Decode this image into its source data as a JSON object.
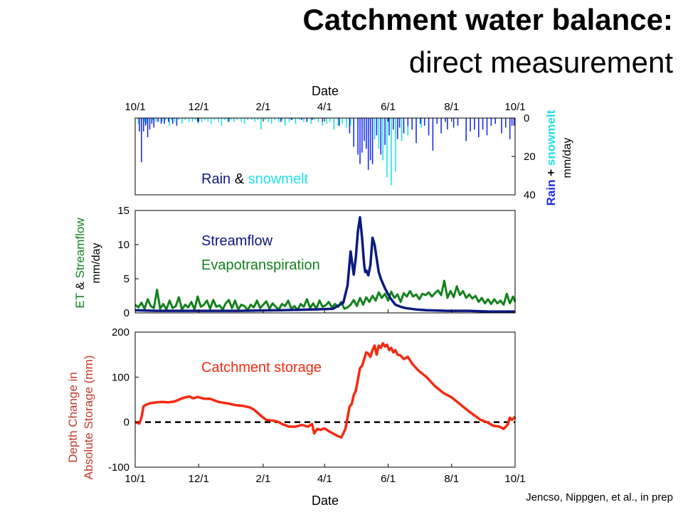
{
  "slide": {
    "title_bold": "Catchment water balance:",
    "title_regular": "direct measurement",
    "credit": "Jencso, Nippgen, et al., in prep"
  },
  "colors": {
    "rain": "#1a2ee6",
    "snowmelt": "#22e0ea",
    "streamflow": "#0c1a80",
    "et": "#12821c",
    "storage": "#f22a10",
    "storage_label": "#c0392b"
  },
  "chart_data": [
    {
      "type": "bar",
      "panel": "precipitation",
      "xlabel": "Date",
      "x_tick_labels": [
        "10/1",
        "12/1",
        "2/1",
        "4/1",
        "6/1",
        "8/1",
        "10/1"
      ],
      "x_ticks_day": [
        0,
        61,
        123,
        182,
        243,
        304,
        365
      ],
      "y_axis_side": "right",
      "inverted": true,
      "ylim": [
        0,
        40
      ],
      "y_ticks": [
        0,
        20,
        40
      ],
      "ylabel_parts": [
        "Rain",
        " + ",
        "snowmelt"
      ],
      "ylabel_units": "mm/day",
      "annotation_parts": [
        "Rain",
        " & ",
        "snowmelt"
      ],
      "snowmelt": {
        "name": "snowmelt",
        "day": [
          3,
          6,
          9,
          11,
          14,
          17,
          20,
          22,
          26,
          29,
          33,
          35,
          38,
          42,
          45,
          48,
          52,
          55,
          58,
          61,
          64,
          67,
          70,
          73,
          76,
          80,
          83,
          86,
          89,
          92,
          95,
          98,
          102,
          105,
          108,
          112,
          115,
          118,
          121,
          125,
          128,
          131,
          134,
          138,
          141,
          144,
          148,
          151,
          154,
          158,
          162,
          165,
          169,
          172,
          176,
          180,
          184,
          187,
          191,
          195,
          199,
          203,
          207,
          210,
          214,
          218,
          222,
          226,
          230,
          234,
          238,
          242,
          246,
          250,
          256,
          262,
          275
        ],
        "values": [
          3,
          1,
          2,
          3,
          1,
          1,
          2,
          1,
          2,
          1,
          4,
          1,
          2,
          1,
          3,
          1,
          2,
          2,
          1,
          3,
          2,
          1,
          2,
          3,
          1,
          2,
          4,
          1,
          2,
          1,
          2,
          1,
          2,
          3,
          1,
          1,
          2,
          1,
          6,
          1,
          2,
          3,
          1,
          2,
          1,
          4,
          2,
          1,
          3,
          1,
          2,
          2,
          3,
          1,
          2,
          4,
          3,
          2,
          6,
          4,
          3,
          5,
          4,
          3,
          2,
          5,
          9,
          7,
          11,
          16,
          22,
          31,
          35,
          28,
          12,
          9,
          5
        ]
      },
      "rain": {
        "name": "rain",
        "day": [
          4,
          6,
          8,
          10,
          12,
          14,
          16,
          18,
          22,
          25,
          28,
          32,
          36,
          40,
          60,
          90,
          140,
          150,
          160,
          165,
          170,
          180,
          196,
          206,
          210,
          214,
          216,
          218,
          220,
          222,
          224,
          226,
          228,
          232,
          236,
          240,
          244,
          248,
          252,
          254,
          258,
          262,
          266,
          270,
          274,
          278,
          282,
          286,
          290,
          294,
          298,
          300,
          306,
          310,
          318,
          322,
          326,
          330,
          334,
          338,
          342,
          346,
          352,
          356,
          360,
          362,
          364
        ],
        "values": [
          7,
          23,
          7,
          4,
          10,
          6,
          3,
          5,
          2,
          3,
          3,
          2,
          3,
          4,
          2,
          2,
          2,
          1,
          1,
          2,
          1,
          2,
          4,
          8,
          15,
          19,
          24,
          18,
          12,
          16,
          27,
          22,
          24,
          9,
          19,
          14,
          9,
          6,
          11,
          5,
          8,
          4,
          6,
          13,
          3,
          4,
          9,
          17,
          3,
          8,
          2,
          6,
          5,
          4,
          12,
          7,
          6,
          10,
          6,
          9,
          4,
          3,
          8,
          5,
          11,
          4,
          4
        ]
      }
    },
    {
      "type": "line",
      "panel": "streamflow_et",
      "xlim_days": [
        0,
        365
      ],
      "ylim": [
        0,
        15
      ],
      "y_ticks": [
        0,
        5,
        10,
        15
      ],
      "ylabel_parts": [
        "ET",
        " & ",
        "Streamflow"
      ],
      "ylabel_units": "mm/day",
      "series": [
        {
          "name": "Streamflow",
          "x": [
            0,
            20,
            60,
            100,
            140,
            170,
            190,
            200,
            204,
            207,
            210,
            212,
            214,
            216,
            218,
            220,
            221,
            222,
            224,
            226,
            228,
            230,
            232,
            234,
            236,
            240,
            245,
            250,
            255,
            260,
            270,
            280,
            300,
            320,
            340,
            365
          ],
          "y": [
            0.4,
            0.3,
            0.3,
            0.3,
            0.4,
            0.5,
            0.6,
            1.5,
            4.0,
            9.0,
            5.6,
            8.2,
            12.0,
            14.0,
            11.0,
            7.0,
            6.0,
            6.2,
            5.5,
            7.0,
            11.0,
            10.0,
            8.0,
            6.0,
            5.0,
            3.6,
            2.2,
            1.2,
            0.9,
            0.7,
            0.5,
            0.4,
            0.3,
            0.3,
            0.2,
            0.2
          ]
        },
        {
          "name": "Evapotranspiration",
          "x": [
            0,
            3,
            6,
            9,
            12,
            15,
            18,
            21,
            24,
            27,
            30,
            33,
            36,
            39,
            42,
            45,
            48,
            51,
            54,
            57,
            60,
            63,
            66,
            69,
            72,
            75,
            78,
            81,
            84,
            87,
            90,
            93,
            96,
            99,
            102,
            105,
            108,
            111,
            114,
            117,
            120,
            123,
            126,
            129,
            132,
            135,
            138,
            141,
            144,
            147,
            150,
            153,
            156,
            159,
            162,
            165,
            168,
            171,
            174,
            177,
            180,
            183,
            186,
            189,
            192,
            195,
            198,
            201,
            204,
            207,
            210,
            213,
            216,
            219,
            222,
            225,
            228,
            231,
            234,
            237,
            240,
            243,
            246,
            249,
            252,
            255,
            258,
            261,
            264,
            267,
            270,
            273,
            276,
            279,
            282,
            285,
            288,
            291,
            294,
            297,
            300,
            303,
            306,
            309,
            312,
            315,
            318,
            321,
            324,
            327,
            330,
            333,
            336,
            339,
            342,
            345,
            348,
            351,
            354,
            357,
            360,
            363,
            365
          ],
          "y": [
            1.2,
            0.8,
            1.5,
            0.6,
            2.0,
            1.0,
            0.7,
            3.4,
            0.6,
            1.3,
            0.5,
            1.8,
            0.7,
            1.0,
            2.3,
            0.5,
            1.2,
            0.8,
            1.6,
            0.5,
            2.4,
            0.9,
            1.2,
            1.8,
            0.6,
            1.9,
            0.9,
            1.1,
            0.5,
            1.4,
            1.9,
            0.7,
            1.8,
            0.5,
            1.2,
            1.0,
            0.4,
            1.2,
            0.8,
            1.8,
            0.7,
            1.2,
            1.7,
            0.6,
            1.4,
            0.9,
            0.5,
            1.3,
            1.0,
            1.8,
            0.6,
            1.0,
            0.4,
            1.3,
            0.9,
            2.0,
            0.7,
            1.4,
            0.6,
            1.8,
            0.9,
            1.1,
            1.6,
            0.8,
            1.3,
            0.9,
            1.6,
            0.6,
            0.8,
            1.2,
            1.9,
            1.0,
            2.2,
            1.2,
            2.3,
            1.6,
            2.5,
            1.8,
            3.0,
            2.2,
            2.8,
            1.8,
            3.1,
            2.2,
            2.7,
            1.6,
            2.9,
            2.4,
            3.2,
            2.4,
            2.7,
            2.0,
            2.8,
            2.6,
            3.0,
            2.4,
            2.9,
            3.3,
            2.6,
            4.7,
            2.2,
            3.2,
            2.3,
            3.9,
            2.6,
            3.2,
            2.2,
            2.7,
            2.1,
            2.5,
            1.6,
            2.2,
            1.4,
            2.0,
            1.3,
            2.0,
            1.4,
            1.8,
            1.2,
            2.8,
            1.4,
            2.4,
            1.6
          ]
        }
      ],
      "annotations": [
        "Streamflow",
        "Evapotranspiration"
      ]
    },
    {
      "type": "line",
      "panel": "storage",
      "xlabel": "Date",
      "x_tick_labels": [
        "10/1",
        "12/1",
        "2/1",
        "4/1",
        "6/1",
        "8/1",
        "10/1"
      ],
      "x_ticks_day": [
        0,
        61,
        123,
        182,
        243,
        304,
        365
      ],
      "ylim": [
        -100,
        200
      ],
      "y_ticks": [
        -100,
        0,
        100,
        200
      ],
      "ylabel_lines": [
        "Depth Change in",
        "Absolute Storage (mm)"
      ],
      "reference_line_y": 0,
      "annotations": [
        "Catchment storage"
      ],
      "series": [
        {
          "name": "Catchment storage",
          "x": [
            0,
            4,
            6,
            8,
            10,
            14,
            20,
            26,
            32,
            38,
            44,
            48,
            52,
            56,
            60,
            66,
            72,
            80,
            88,
            96,
            104,
            110,
            114,
            118,
            122,
            126,
            130,
            136,
            142,
            148,
            154,
            160,
            166,
            170,
            172,
            175,
            178,
            182,
            186,
            190,
            194,
            198,
            202,
            204,
            206,
            208,
            210,
            212,
            214,
            216,
            218,
            220,
            222,
            224,
            226,
            228,
            230,
            232,
            234,
            236,
            238,
            240,
            242,
            244,
            246,
            248,
            250,
            252,
            255,
            258,
            262,
            266,
            272,
            280,
            288,
            296,
            304,
            312,
            320,
            326,
            332,
            338,
            344,
            350,
            354,
            356,
            358,
            360,
            362,
            365
          ],
          "y": [
            0,
            -3,
            10,
            35,
            38,
            42,
            44,
            45,
            44,
            46,
            52,
            55,
            57,
            53,
            56,
            52,
            52,
            45,
            42,
            38,
            36,
            33,
            28,
            20,
            12,
            5,
            4,
            2,
            -5,
            -10,
            -10,
            -6,
            -10,
            -4,
            -25,
            -15,
            -17,
            -14,
            -20,
            -25,
            -30,
            -34,
            -15,
            10,
            35,
            40,
            60,
            70,
            95,
            120,
            125,
            140,
            155,
            152,
            145,
            160,
            170,
            150,
            170,
            165,
            175,
            168,
            172,
            160,
            165,
            155,
            160,
            150,
            148,
            140,
            145,
            130,
            115,
            100,
            80,
            65,
            55,
            40,
            25,
            15,
            5,
            0,
            -8,
            -10,
            -15,
            -10,
            -5,
            10,
            5,
            12
          ]
        }
      ]
    }
  ]
}
